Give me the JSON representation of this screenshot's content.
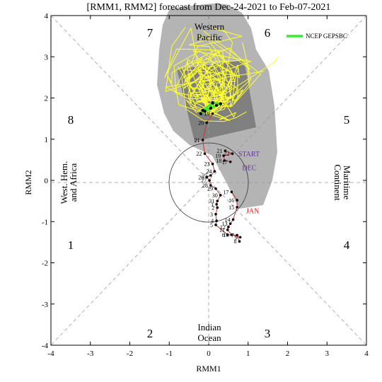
{
  "chart_data": {
    "type": "line",
    "title": "[RMM1, RMM2] forecast from Dec-24-2021 to Feb-07-2021",
    "xlabel": "RMM1",
    "ylabel": "RMM2",
    "xlim": [
      -4,
      4
    ],
    "ylim": [
      -4,
      4
    ],
    "x_ticks": [
      "-4",
      "-3",
      "-2",
      "-1",
      "0",
      "1",
      "2",
      "3",
      "4"
    ],
    "y_ticks": [
      "-4",
      "-3",
      "-2",
      "-1",
      "0",
      "1",
      "2",
      "3",
      "4"
    ],
    "grid": false,
    "legend_position": "top-right",
    "phase_numbers": [
      "1",
      "2",
      "3",
      "4",
      "5",
      "6",
      "7",
      "8"
    ],
    "regions": {
      "top_line1": "Western",
      "top_line2": "Pacific",
      "bottom_line1": "Indian",
      "bottom_line2": "Ocean",
      "left_line1": "West. Hem.",
      "left_line2": "and Africa",
      "right_line1": "Maritime",
      "right_line2": "Continent"
    },
    "colors": {
      "observed_line": "#cc3333",
      "ensemble": "#ffff33",
      "ensemble_mean": "#33ee33",
      "spread_outer": "#b4b4b4",
      "spread_inner": "#808080",
      "month_dec": "#663399",
      "month_jan": "#cc2222"
    },
    "legend": [
      {
        "name": "NCEP GEPSBC",
        "color": "#33ee33"
      }
    ],
    "month_labels": [
      {
        "text": "START",
        "x": 0.75,
        "y": 0.58,
        "color": "#663399"
      },
      {
        "text": "DEC",
        "x": 0.85,
        "y": 0.25,
        "color": "#663399"
      },
      {
        "text": "JAN",
        "x": 0.95,
        "y": -0.8,
        "color": "#cc2222"
      }
    ],
    "observed": {
      "name": "Observed",
      "points": [
        {
          "day": "8",
          "x": 0.78,
          "y": -1.48
        },
        {
          "day": "7",
          "x": 0.72,
          "y": -1.33
        },
        {
          "day": "6",
          "x": 0.48,
          "y": -1.32
        },
        {
          "day": "5",
          "x": 0.18,
          "y": -1.08
        },
        {
          "day": "4",
          "x": 0.2,
          "y": -0.98
        },
        {
          "day": "3",
          "x": 0.18,
          "y": -0.82
        },
        {
          "day": "2",
          "x": 0.22,
          "y": -0.66
        },
        {
          "day": "1",
          "x": 0.2,
          "y": -0.58
        },
        {
          "day": "31",
          "x": 0.22,
          "y": -0.5
        },
        {
          "day": "30",
          "x": 0.3,
          "y": -0.36
        },
        {
          "day": "29",
          "x": 0.18,
          "y": -0.2
        },
        {
          "day": "28",
          "x": 0.05,
          "y": -0.12
        },
        {
          "day": "27",
          "x": 0.02,
          "y": 0.0
        },
        {
          "day": "26",
          "x": -0.05,
          "y": 0.08
        },
        {
          "day": "25",
          "x": 0.05,
          "y": 0.12
        },
        {
          "day": "24",
          "x": 0.15,
          "y": 0.22
        },
        {
          "day": "23",
          "x": 0.1,
          "y": 0.4
        },
        {
          "day": "22",
          "x": -0.1,
          "y": 0.65
        },
        {
          "day": "21",
          "x": -0.15,
          "y": 0.98
        },
        {
          "day": "20",
          "x": -0.05,
          "y": 1.4
        },
        {
          "day": "19",
          "x": 0.1,
          "y": 1.62
        }
      ],
      "jan_path": [
        {
          "day": "17",
          "x": 0.58,
          "y": -0.28
        },
        {
          "day": "16",
          "x": 0.72,
          "y": -0.48
        },
        {
          "day": "15",
          "x": 0.72,
          "y": -0.65
        },
        {
          "day": "14",
          "x": 0.62,
          "y": -0.95
        },
        {
          "day": "13",
          "x": 0.55,
          "y": -1.05
        },
        {
          "day": "12",
          "x": 0.5,
          "y": -1.13
        },
        {
          "day": "11",
          "x": 0.48,
          "y": -1.2
        },
        {
          "day": "10",
          "x": 0.58,
          "y": -1.32
        },
        {
          "day": "9",
          "x": 0.8,
          "y": -1.38
        }
      ],
      "dec_path": [
        {
          "day": "21",
          "x": 0.42,
          "y": 0.72
        },
        {
          "day": "22",
          "x": 0.6,
          "y": 0.65
        },
        {
          "day": "19",
          "x": 0.38,
          "y": 0.6
        },
        {
          "day": "18",
          "x": 0.4,
          "y": 0.48
        },
        {
          "day": "17",
          "x": 0.55,
          "y": 0.45
        }
      ]
    },
    "ensemble_mean": [
      {
        "x": -0.2,
        "y": 1.62
      },
      {
        "x": -0.1,
        "y": 1.68
      },
      {
        "x": 0.05,
        "y": 1.75
      },
      {
        "x": 0.2,
        "y": 1.82
      },
      {
        "x": 0.3,
        "y": 1.86
      },
      {
        "x": 0.1,
        "y": 1.88
      },
      {
        "x": -0.15,
        "y": 1.7
      }
    ],
    "ensemble_centers": [
      {
        "x": 0.1,
        "y": 1.7
      },
      {
        "x": 0.35,
        "y": 1.9
      },
      {
        "x": -0.15,
        "y": 1.95
      }
    ]
  }
}
